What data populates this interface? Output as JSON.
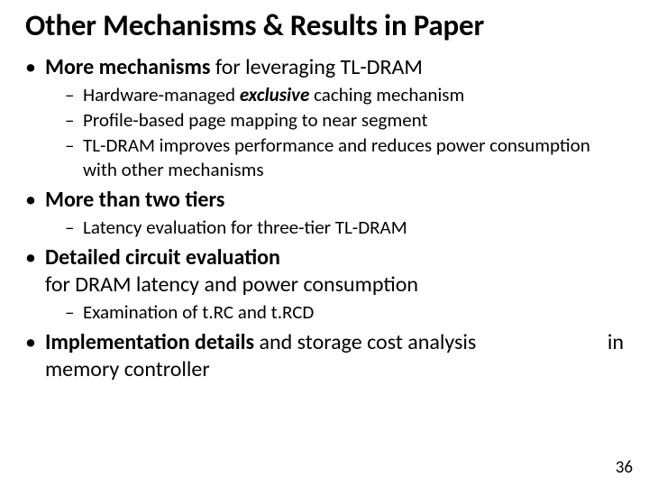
{
  "title": "Other Mechanisms & Results in Paper",
  "b1": {
    "bold": "More mechanisms",
    "rest": " for leveraging TL-DRAM",
    "s1a": "Hardware-managed ",
    "s1b": "exclusive",
    "s1c": " caching mechanism",
    "s2": "Profile-based page mapping to near segment",
    "s3": "TL-DRAM improves performance and reduces power consumption with other mechanisms"
  },
  "b2": {
    "bold": "More than two tiers",
    "s1": "Latency evaluation for three-tier TL-DRAM"
  },
  "b3": {
    "bold": "Detailed circuit evaluation",
    "rest_line2": "for DRAM latency and power consumption",
    "s1": "Examination of t.RC and t.RCD"
  },
  "b4": {
    "bold": "Implementation details",
    "mid": " and storage cost analysis",
    "right": "in",
    "line2": "memory controller"
  },
  "page_number": "36"
}
